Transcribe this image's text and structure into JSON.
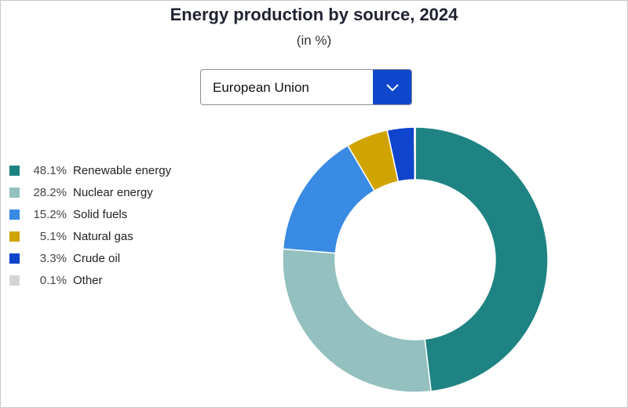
{
  "title": "Energy production by source, 2024",
  "subtitle": "(in %)",
  "selector": {
    "selected": "European Union",
    "icon": "chevron-down-icon"
  },
  "legend": [
    {
      "pct": "48.1%",
      "label": "Renewable energy",
      "color": "#1f8383"
    },
    {
      "pct": "28.2%",
      "label": "Nuclear energy",
      "color": "#94c0bf"
    },
    {
      "pct": "15.2%",
      "label": "Solid fuels",
      "color": "#398ae3"
    },
    {
      "pct": "5.1%",
      "label": "Natural gas",
      "color": "#cfa400"
    },
    {
      "pct": "3.3%",
      "label": "Crude oil",
      "color": "#0e45cc"
    },
    {
      "pct": "0.1%",
      "label": "Other",
      "color": "#d4d4d4"
    }
  ],
  "chart_data": {
    "type": "pie",
    "title": "Energy production by source, 2024",
    "subtitle": "(in %)",
    "donut": true,
    "categories": [
      "Renewable energy",
      "Nuclear energy",
      "Solid fuels",
      "Natural gas",
      "Crude oil",
      "Other"
    ],
    "values": [
      48.1,
      28.2,
      15.2,
      5.1,
      3.3,
      0.1
    ],
    "colors": [
      "#1f8383",
      "#94c0bf",
      "#398ae3",
      "#cfa400",
      "#0e45cc",
      "#d4d4d4"
    ],
    "legend_position": "left"
  }
}
